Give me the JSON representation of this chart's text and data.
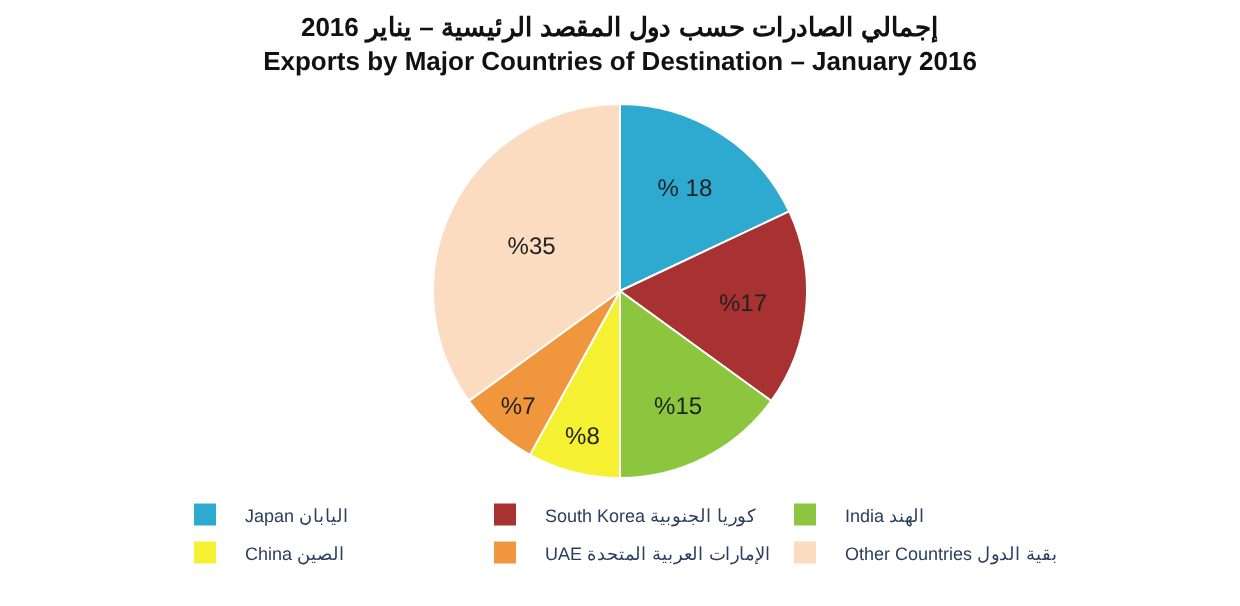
{
  "chart_data": {
    "type": "pie",
    "title": "إجمالي الصادرات حسب دول المقصد الرئيسية – يناير 2016",
    "subtitle": "Exports by Major Countries of Destination – January 2016",
    "categories": [
      "Japan اليابان",
      "South Korea كوريا الجنوبية",
      "India الهند",
      "China الصين",
      "UAE الإمارات العربية المتحدة",
      "Other Countries بقية الدول"
    ],
    "values": [
      18,
      17,
      15,
      8,
      7,
      35
    ],
    "value_labels": [
      "% 18",
      "%17",
      "%15",
      "%8",
      "%7",
      "%35"
    ],
    "colors": [
      "#2eaad1",
      "#a83232",
      "#8cc63f",
      "#f5f032",
      "#f0963c",
      "#fcdcc0"
    ],
    "legend": "bottom"
  }
}
